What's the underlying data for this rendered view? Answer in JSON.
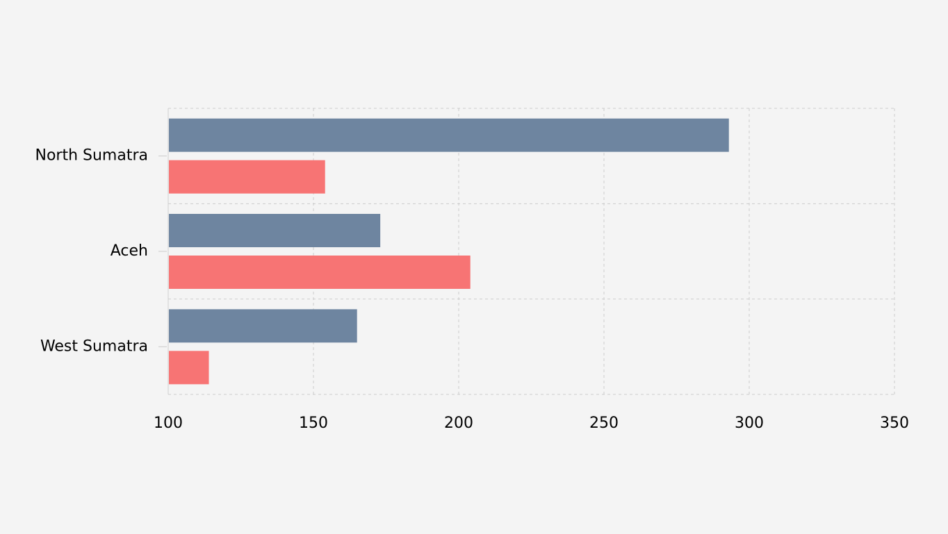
{
  "chart_data": {
    "type": "bar",
    "orientation": "horizontal",
    "categories": [
      "North Sumatra",
      "Aceh",
      "West Sumatra"
    ],
    "series": [
      {
        "values": [
          293,
          173,
          165
        ],
        "color": "#6e85a0"
      },
      {
        "values": [
          154,
          204,
          114
        ],
        "color": "#f77474"
      }
    ],
    "xlim": [
      100,
      350
    ],
    "xticks": [
      100,
      150,
      200,
      250,
      300,
      350
    ],
    "grid": true,
    "grid_style": "dashed",
    "legend": "none",
    "background": "#f4f4f4"
  }
}
